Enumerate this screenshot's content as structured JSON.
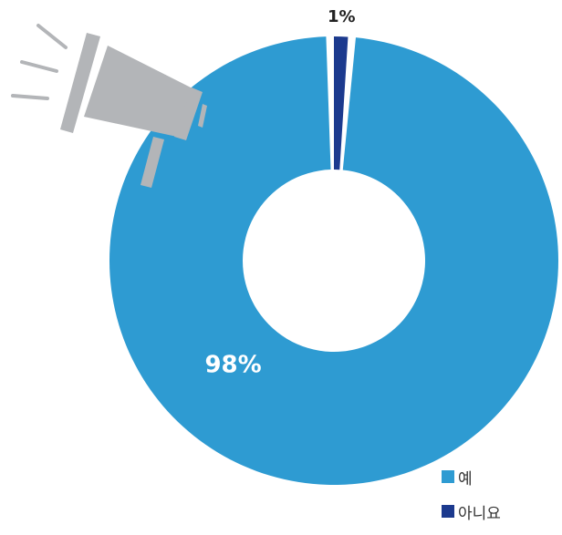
{
  "chart_data": {
    "type": "pie",
    "donut": true,
    "categories": [
      "예",
      "아니요"
    ],
    "values": [
      98,
      1
    ],
    "data_labels": [
      "98%",
      "1%"
    ],
    "legend_placement": "bottom-right",
    "colors": {
      "예": "#2e9bd2",
      "아니요": "#1c3a8e",
      "label_light": "#ffffff",
      "label_dark": "#222222",
      "megaphone": "#b3b5b8"
    },
    "decoration": {
      "icon": "megaphone-icon"
    }
  },
  "legend": {
    "items": [
      {
        "label": "예",
        "color": "#2e9bd2"
      },
      {
        "label": "아니요",
        "color": "#1c3a8e"
      }
    ]
  }
}
